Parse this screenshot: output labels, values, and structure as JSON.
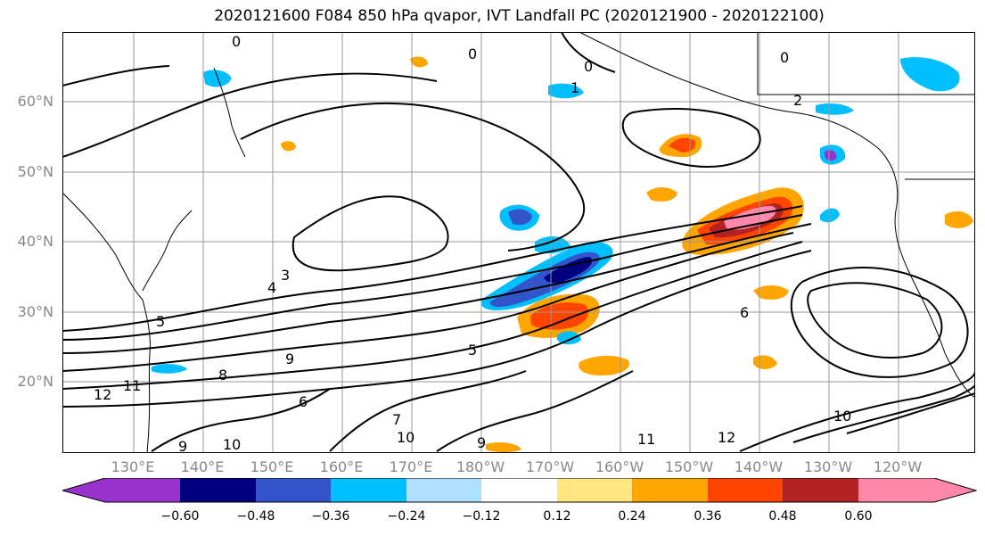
{
  "title": "2020121600 F084 850 hPa qvapor, IVT Landfall PC (2020121900 - 2020122100)",
  "map": {
    "lat_labels": [
      "60°N",
      "50°N",
      "40°N",
      "30°N",
      "20°N"
    ],
    "lon_labels": [
      "130°E",
      "140°E",
      "150°E",
      "160°E",
      "170°E",
      "180°W",
      "170°W",
      "160°W",
      "150°W",
      "140°W",
      "130°W",
      "120°W"
    ],
    "contour_labels": [
      "0",
      "0",
      "0",
      "0",
      "1",
      "2",
      "3",
      "4",
      "5",
      "5",
      "6",
      "6",
      "7",
      "8",
      "9",
      "9",
      "9",
      "10",
      "10",
      "10",
      "11",
      "11",
      "12",
      "12"
    ]
  },
  "colorbar": {
    "ticks": [
      "−0.60",
      "−0.48",
      "−0.36",
      "−0.24",
      "−0.12",
      "0.12",
      "0.24",
      "0.36",
      "0.48",
      "0.60"
    ],
    "colors": [
      "#9932cc",
      "#000080",
      "#3355cc",
      "#00bfff",
      "#b0e0ff",
      "#ffffff",
      "#ffe680",
      "#ffa500",
      "#ff4500",
      "#b22222",
      "#ff88aa"
    ]
  }
}
